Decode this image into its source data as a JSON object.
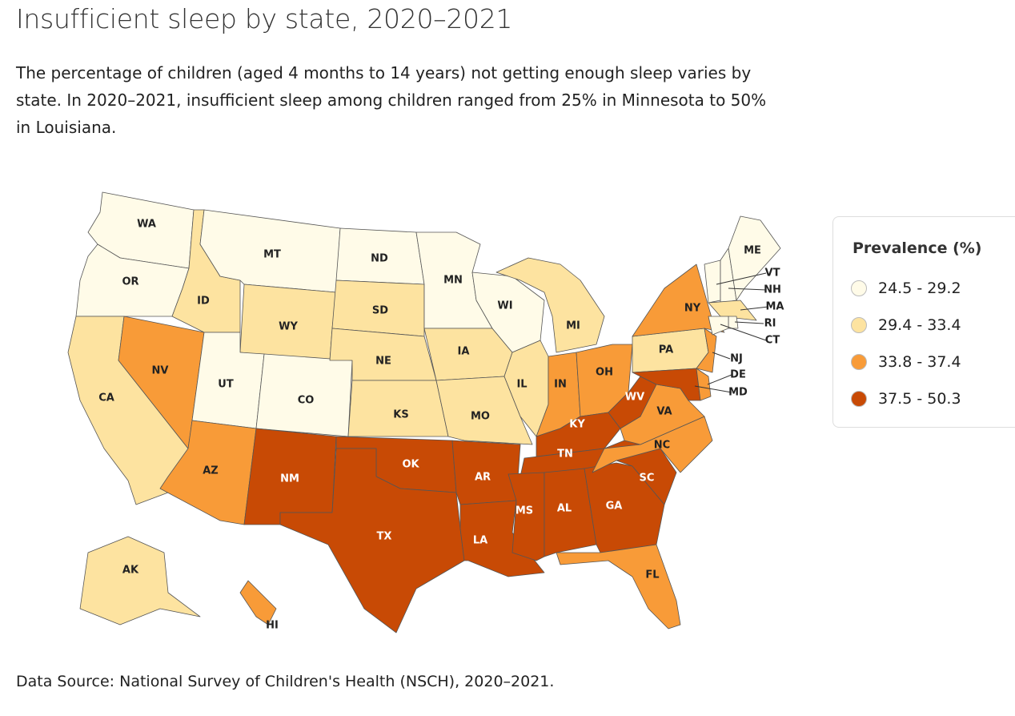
{
  "header": {
    "title": "Insufficient sleep by state, 2020–2021",
    "subtitle": "The percentage of children (aged 4 months to 14 years) not getting enough sleep varies by state. In 2020–2021, insufficient sleep among children ranged from 25% in Minnesota to 50% in Louisiana."
  },
  "legend": {
    "title": "Prevalence (%)",
    "classes": [
      {
        "label": "24.5 - 29.2",
        "color": "#fffbe8"
      },
      {
        "label": "29.4 - 33.4",
        "color": "#fde3a0"
      },
      {
        "label": "33.8 - 37.4",
        "color": "#f89b38"
      },
      {
        "label": "37.5 - 50.3",
        "color": "#c84a05"
      }
    ]
  },
  "states": [
    {
      "abbr": "WA",
      "color": "#fffbe8"
    },
    {
      "abbr": "OR",
      "color": "#fffbe8"
    },
    {
      "abbr": "CA",
      "color": "#fde3a0"
    },
    {
      "abbr": "NV",
      "color": "#f89b38"
    },
    {
      "abbr": "ID",
      "color": "#fde3a0"
    },
    {
      "abbr": "MT",
      "color": "#fffbe8"
    },
    {
      "abbr": "WY",
      "color": "#fde3a0"
    },
    {
      "abbr": "UT",
      "color": "#fffbe8"
    },
    {
      "abbr": "CO",
      "color": "#fffbe8"
    },
    {
      "abbr": "AZ",
      "color": "#f89b38"
    },
    {
      "abbr": "NM",
      "color": "#c84a05"
    },
    {
      "abbr": "ND",
      "color": "#fffbe8"
    },
    {
      "abbr": "SD",
      "color": "#fde3a0"
    },
    {
      "abbr": "NE",
      "color": "#fde3a0"
    },
    {
      "abbr": "KS",
      "color": "#fde3a0"
    },
    {
      "abbr": "OK",
      "color": "#c84a05"
    },
    {
      "abbr": "TX",
      "color": "#c84a05"
    },
    {
      "abbr": "MN",
      "color": "#fffbe8"
    },
    {
      "abbr": "IA",
      "color": "#fde3a0"
    },
    {
      "abbr": "MO",
      "color": "#fde3a0"
    },
    {
      "abbr": "AR",
      "color": "#c84a05"
    },
    {
      "abbr": "LA",
      "color": "#c84a05"
    },
    {
      "abbr": "WI",
      "color": "#fffbe8"
    },
    {
      "abbr": "IL",
      "color": "#fde3a0"
    },
    {
      "abbr": "MI",
      "color": "#fde3a0"
    },
    {
      "abbr": "IN",
      "color": "#f89b38"
    },
    {
      "abbr": "OH",
      "color": "#f89b38"
    },
    {
      "abbr": "KY",
      "color": "#c84a05"
    },
    {
      "abbr": "TN",
      "color": "#c84a05"
    },
    {
      "abbr": "MS",
      "color": "#c84a05"
    },
    {
      "abbr": "AL",
      "color": "#c84a05"
    },
    {
      "abbr": "GA",
      "color": "#c84a05"
    },
    {
      "abbr": "FL",
      "color": "#f89b38"
    },
    {
      "abbr": "SC",
      "color": "#c84a05"
    },
    {
      "abbr": "NC",
      "color": "#f89b38"
    },
    {
      "abbr": "VA",
      "color": "#f89b38"
    },
    {
      "abbr": "WV",
      "color": "#c84a05"
    },
    {
      "abbr": "PA",
      "color": "#fde3a0"
    },
    {
      "abbr": "NY",
      "color": "#f89b38"
    },
    {
      "abbr": "MD",
      "color": "#c84a05"
    },
    {
      "abbr": "DE",
      "color": "#f89b38"
    },
    {
      "abbr": "NJ",
      "color": "#f89b38"
    },
    {
      "abbr": "VT",
      "color": "#fffbe8"
    },
    {
      "abbr": "NH",
      "color": "#fffbe8"
    },
    {
      "abbr": "MA",
      "color": "#fde3a0"
    },
    {
      "abbr": "RI",
      "color": "#fffbe8"
    },
    {
      "abbr": "CT",
      "color": "#fffbe8"
    },
    {
      "abbr": "ME",
      "color": "#fffbe8"
    },
    {
      "abbr": "AK",
      "color": "#fde3a0"
    },
    {
      "abbr": "HI",
      "color": "#f89b38"
    }
  ],
  "footer": {
    "source": "Data Source: National Survey of Children's Health (NSCH), 2020–2021."
  }
}
